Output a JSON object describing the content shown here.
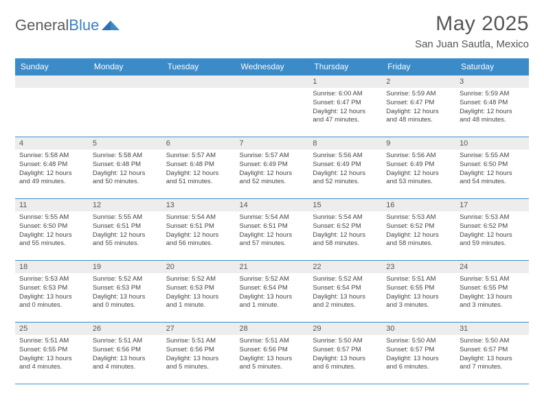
{
  "logo": {
    "part1": "General",
    "part2": "Blue"
  },
  "title": "May 2025",
  "location": "San Juan Sautla, Mexico",
  "colors": {
    "header_bg": "#3b8bc9",
    "header_text": "#ffffff",
    "daynum_bg": "#ededed",
    "border": "#3b8bc9",
    "text": "#444444",
    "logo_gray": "#5a5a5a",
    "logo_blue": "#3b7fc4"
  },
  "weekdays": [
    "Sunday",
    "Monday",
    "Tuesday",
    "Wednesday",
    "Thursday",
    "Friday",
    "Saturday"
  ],
  "layout": {
    "first_weekday_index": 4,
    "days_in_month": 31
  },
  "days": [
    {
      "n": 1,
      "sunrise": "6:00 AM",
      "sunset": "6:47 PM",
      "daylight": "12 hours and 47 minutes."
    },
    {
      "n": 2,
      "sunrise": "5:59 AM",
      "sunset": "6:47 PM",
      "daylight": "12 hours and 48 minutes."
    },
    {
      "n": 3,
      "sunrise": "5:59 AM",
      "sunset": "6:48 PM",
      "daylight": "12 hours and 48 minutes."
    },
    {
      "n": 4,
      "sunrise": "5:58 AM",
      "sunset": "6:48 PM",
      "daylight": "12 hours and 49 minutes."
    },
    {
      "n": 5,
      "sunrise": "5:58 AM",
      "sunset": "6:48 PM",
      "daylight": "12 hours and 50 minutes."
    },
    {
      "n": 6,
      "sunrise": "5:57 AM",
      "sunset": "6:48 PM",
      "daylight": "12 hours and 51 minutes."
    },
    {
      "n": 7,
      "sunrise": "5:57 AM",
      "sunset": "6:49 PM",
      "daylight": "12 hours and 52 minutes."
    },
    {
      "n": 8,
      "sunrise": "5:56 AM",
      "sunset": "6:49 PM",
      "daylight": "12 hours and 52 minutes."
    },
    {
      "n": 9,
      "sunrise": "5:56 AM",
      "sunset": "6:49 PM",
      "daylight": "12 hours and 53 minutes."
    },
    {
      "n": 10,
      "sunrise": "5:55 AM",
      "sunset": "6:50 PM",
      "daylight": "12 hours and 54 minutes."
    },
    {
      "n": 11,
      "sunrise": "5:55 AM",
      "sunset": "6:50 PM",
      "daylight": "12 hours and 55 minutes."
    },
    {
      "n": 12,
      "sunrise": "5:55 AM",
      "sunset": "6:51 PM",
      "daylight": "12 hours and 55 minutes."
    },
    {
      "n": 13,
      "sunrise": "5:54 AM",
      "sunset": "6:51 PM",
      "daylight": "12 hours and 56 minutes."
    },
    {
      "n": 14,
      "sunrise": "5:54 AM",
      "sunset": "6:51 PM",
      "daylight": "12 hours and 57 minutes."
    },
    {
      "n": 15,
      "sunrise": "5:54 AM",
      "sunset": "6:52 PM",
      "daylight": "12 hours and 58 minutes."
    },
    {
      "n": 16,
      "sunrise": "5:53 AM",
      "sunset": "6:52 PM",
      "daylight": "12 hours and 58 minutes."
    },
    {
      "n": 17,
      "sunrise": "5:53 AM",
      "sunset": "6:52 PM",
      "daylight": "12 hours and 59 minutes."
    },
    {
      "n": 18,
      "sunrise": "5:53 AM",
      "sunset": "6:53 PM",
      "daylight": "13 hours and 0 minutes."
    },
    {
      "n": 19,
      "sunrise": "5:52 AM",
      "sunset": "6:53 PM",
      "daylight": "13 hours and 0 minutes."
    },
    {
      "n": 20,
      "sunrise": "5:52 AM",
      "sunset": "6:53 PM",
      "daylight": "13 hours and 1 minute."
    },
    {
      "n": 21,
      "sunrise": "5:52 AM",
      "sunset": "6:54 PM",
      "daylight": "13 hours and 1 minute."
    },
    {
      "n": 22,
      "sunrise": "5:52 AM",
      "sunset": "6:54 PM",
      "daylight": "13 hours and 2 minutes."
    },
    {
      "n": 23,
      "sunrise": "5:51 AM",
      "sunset": "6:55 PM",
      "daylight": "13 hours and 3 minutes."
    },
    {
      "n": 24,
      "sunrise": "5:51 AM",
      "sunset": "6:55 PM",
      "daylight": "13 hours and 3 minutes."
    },
    {
      "n": 25,
      "sunrise": "5:51 AM",
      "sunset": "6:55 PM",
      "daylight": "13 hours and 4 minutes."
    },
    {
      "n": 26,
      "sunrise": "5:51 AM",
      "sunset": "6:56 PM",
      "daylight": "13 hours and 4 minutes."
    },
    {
      "n": 27,
      "sunrise": "5:51 AM",
      "sunset": "6:56 PM",
      "daylight": "13 hours and 5 minutes."
    },
    {
      "n": 28,
      "sunrise": "5:51 AM",
      "sunset": "6:56 PM",
      "daylight": "13 hours and 5 minutes."
    },
    {
      "n": 29,
      "sunrise": "5:50 AM",
      "sunset": "6:57 PM",
      "daylight": "13 hours and 6 minutes."
    },
    {
      "n": 30,
      "sunrise": "5:50 AM",
      "sunset": "6:57 PM",
      "daylight": "13 hours and 6 minutes."
    },
    {
      "n": 31,
      "sunrise": "5:50 AM",
      "sunset": "6:57 PM",
      "daylight": "13 hours and 7 minutes."
    }
  ],
  "labels": {
    "sunrise": "Sunrise: ",
    "sunset": "Sunset: ",
    "daylight": "Daylight: "
  }
}
